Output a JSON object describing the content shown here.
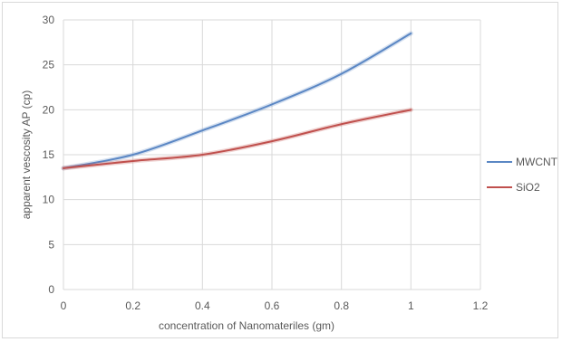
{
  "chart_data": {
    "type": "line",
    "title": "",
    "xlabel": "concentration of Nanomateriles (gm)",
    "ylabel": "apparent vescosity AP (cp)",
    "xlim": [
      0,
      1.2
    ],
    "ylim": [
      0,
      30
    ],
    "x_ticks": [
      "0",
      "0.2",
      "0.4",
      "0.6",
      "0.8",
      "1",
      "1.2"
    ],
    "y_ticks": [
      "0",
      "5",
      "10",
      "15",
      "20",
      "25",
      "30"
    ],
    "x_tick_values": [
      0,
      0.2,
      0.4,
      0.6,
      0.8,
      1.0,
      1.2
    ],
    "y_tick_values": [
      0,
      5,
      10,
      15,
      20,
      25,
      30
    ],
    "grid": true,
    "legend_position": "right",
    "x": [
      0,
      0.2,
      0.4,
      0.6,
      0.8,
      1.0
    ],
    "series": [
      {
        "name": "MWCNT",
        "color": "#5b87c4",
        "values": [
          13.5,
          15.0,
          17.7,
          20.6,
          24.0,
          28.5
        ]
      },
      {
        "name": "SiO2",
        "color": "#c0504d",
        "values": [
          13.5,
          14.3,
          15.0,
          16.5,
          18.4,
          20.0
        ]
      }
    ]
  }
}
